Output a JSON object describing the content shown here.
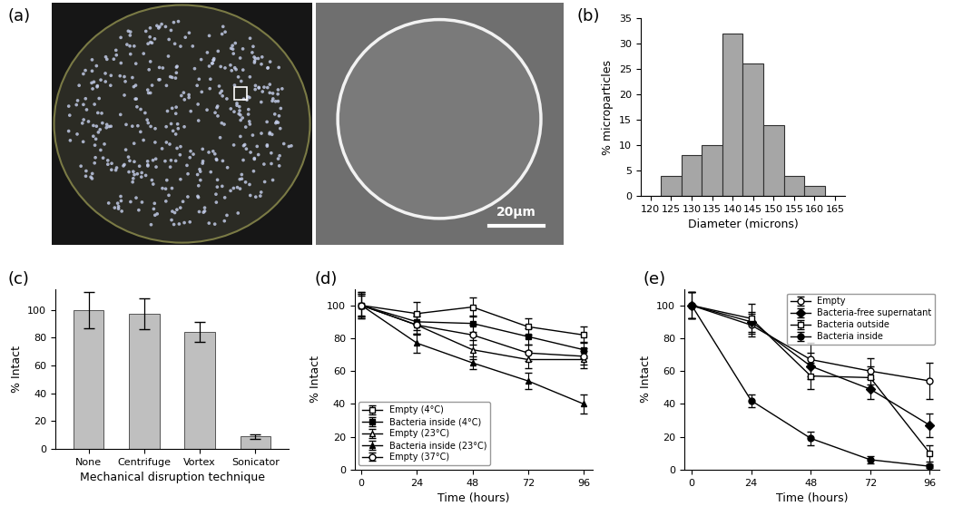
{
  "panel_a": {
    "panel_label": "(a)",
    "scale_bar": "20µm"
  },
  "chart_data": [
    {
      "panel_label": "(b)",
      "type": "bar",
      "x_label": "Diameter (microns)",
      "y_label": "% microparticles",
      "categories": [
        "120",
        "125",
        "130",
        "135",
        "140",
        "145",
        "150",
        "155",
        "160",
        "165"
      ],
      "values": [
        0,
        4,
        8,
        10,
        32,
        26,
        14,
        4,
        2,
        0
      ],
      "color": "#a6a6a6",
      "ylim": [
        0,
        35
      ],
      "yticks": [
        0,
        5,
        10,
        15,
        20,
        25,
        30,
        35
      ]
    },
    {
      "panel_label": "(c)",
      "type": "bar",
      "x_label": "Mechanical disruption technique",
      "y_label": "% Intact",
      "categories": [
        "None",
        "Centrifuge",
        "Vortex",
        "Sonicator"
      ],
      "values": [
        100,
        97,
        84,
        9
      ],
      "errors": [
        13,
        11,
        7,
        1.5
      ],
      "color": "#bfbfbf",
      "ylim": [
        0,
        115
      ],
      "yticks": [
        0,
        20,
        40,
        60,
        80,
        100
      ]
    },
    {
      "panel_label": "(d)",
      "type": "line",
      "x_label": "Time (hours)",
      "y_label": "% Intact",
      "x": [
        0,
        24,
        48,
        72,
        96
      ],
      "series": [
        {
          "name": "Empty (4°C)",
          "color": "#000000",
          "marker": "open square",
          "values": [
            100,
            95,
            99,
            87,
            82
          ],
          "errors": [
            8,
            7,
            6,
            5,
            5
          ]
        },
        {
          "name": "Bacteria inside (4°C)",
          "color": "#000000",
          "marker": "filled square",
          "values": [
            100,
            90,
            89,
            81,
            73
          ],
          "errors": [
            7,
            5,
            5,
            5,
            5
          ]
        },
        {
          "name": "Empty (23°C)",
          "color": "#000000",
          "marker": "open triangle",
          "values": [
            100,
            88,
            73,
            67,
            67
          ],
          "errors": [
            6,
            5,
            6,
            5,
            5
          ]
        },
        {
          "name": "Bacteria inside (23°C)",
          "color": "#000000",
          "marker": "filled triangle",
          "values": [
            100,
            77,
            65,
            54,
            40
          ],
          "errors": [
            8,
            6,
            4,
            5,
            6
          ]
        },
        {
          "name": "Empty (37°C)",
          "color": "#000000",
          "marker": "open circle",
          "values": [
            100,
            88,
            82,
            71,
            69
          ],
          "errors": [
            7,
            6,
            6,
            5,
            5
          ]
        }
      ],
      "xlim": [
        -3,
        100
      ],
      "xticks": [
        0,
        24,
        48,
        72,
        96
      ],
      "ylim": [
        0,
        110
      ],
      "yticks": [
        0,
        20,
        40,
        60,
        80,
        100
      ],
      "legend": "lower left"
    },
    {
      "panel_label": "(e)",
      "type": "line",
      "x_label": "Time (hours)",
      "y_label": "% Intact",
      "x": [
        0,
        24,
        48,
        72,
        96
      ],
      "series": [
        {
          "name": "Empty",
          "color": "#000000",
          "marker": "open circle",
          "values": [
            100,
            88,
            67,
            60,
            54
          ],
          "errors": [
            8,
            7,
            10,
            8,
            11
          ]
        },
        {
          "name": "Bacteria-free supernatant",
          "color": "#000000",
          "marker": "filled diamond",
          "values": [
            100,
            90,
            63,
            49,
            27
          ],
          "errors": [
            8,
            6,
            8,
            6,
            7
          ]
        },
        {
          "name": "Bacteria outside",
          "color": "#000000",
          "marker": "open square",
          "values": [
            100,
            92,
            57,
            56,
            10
          ],
          "errors": [
            8,
            9,
            8,
            7,
            5
          ]
        },
        {
          "name": "Bacteria inside",
          "color": "#000000",
          "marker": "filled circle",
          "values": [
            100,
            42,
            19,
            6,
            2
          ],
          "errors": [
            8,
            4,
            4,
            2,
            1
          ]
        }
      ],
      "xlim": [
        -3,
        100
      ],
      "xticks": [
        0,
        24,
        48,
        72,
        96
      ],
      "ylim": [
        0,
        110
      ],
      "yticks": [
        0,
        20,
        40,
        60,
        80,
        100
      ],
      "legend": "upper right"
    }
  ]
}
